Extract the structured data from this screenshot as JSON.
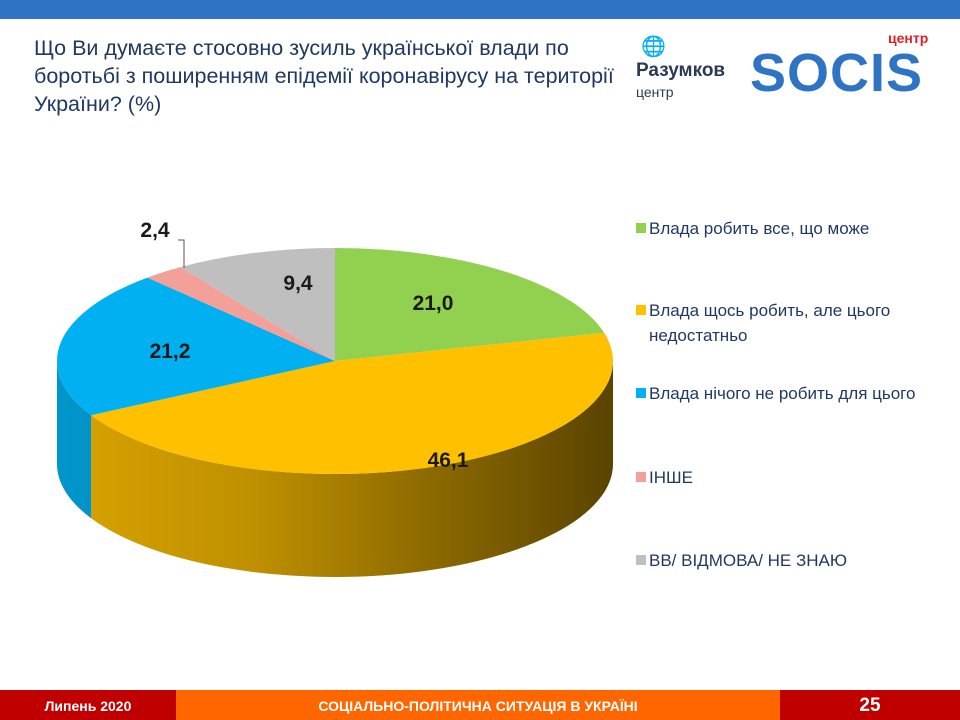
{
  "title": "Що Ви думаєте стосовно зусиль української влади по боротьбі з поширенням епідемії коронавірусу на території України? (%)",
  "logos": {
    "razumkov_name": "Разумков",
    "razumkov_sub": "центр",
    "socis_name": "SOCIS",
    "socis_sub": "центр"
  },
  "chart_data": {
    "type": "pie",
    "style": "3d",
    "start": "12 o'clock, clockwise",
    "legend_position": "right",
    "categories": [
      "Влада робить все, що може",
      "Влада щось робить, але цього недостатньо",
      "Влада нічого не робить для цього",
      "ІНШЕ",
      "ВВ/ ВІДМОВА/  НЕ ЗНАЮ"
    ],
    "values": [
      21.0,
      46.1,
      21.2,
      2.4,
      9.4
    ],
    "labels": [
      "21,0",
      "46,1",
      "21,2",
      "2,4",
      "9,4"
    ],
    "colors": [
      "#92d050",
      "#ffc000",
      "#00b0f0",
      "#f4a09a",
      "#bfbfbf"
    ]
  },
  "footer": {
    "date": "Липень 2020",
    "title": "СОЦІАЛЬНО-ПОЛІТИЧНА СИТУАЦІЯ В УКРАЇНІ",
    "page": "25"
  }
}
